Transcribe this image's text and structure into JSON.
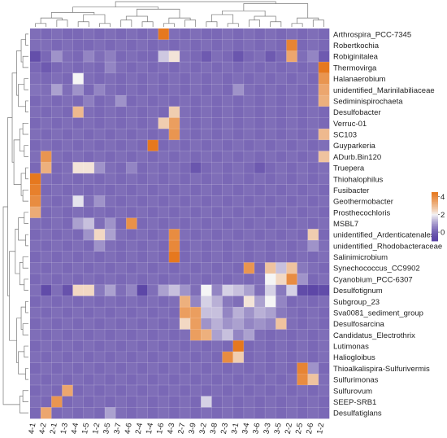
{
  "chart_data": {
    "type": "heatmap",
    "title": "",
    "xlabel": "",
    "ylabel": "",
    "columns": [
      "4-1",
      "4-2",
      "2-1",
      "1-3",
      "4-4",
      "1-5",
      "1-2",
      "3-5",
      "3-7",
      "4-6",
      "2-4",
      "1-4",
      "1-6",
      "4-3",
      "2-7",
      "3-9",
      "3-2",
      "3-8",
      "2-3",
      "3-1",
      "3-4",
      "3-6",
      "3-3",
      "3-5",
      "2-2",
      "2-5",
      "2-6",
      "1-2"
    ],
    "rows": [
      "Arthrospira_PCC-7345",
      "Robertkochia",
      "Robiginitalea",
      "Thermovirga",
      "Halanaerobium",
      "unidentified_Marinilabiliaceae",
      "Sediminispirochaeta",
      "Desulfobacter",
      "Verruc-01",
      "SC103",
      "Guyparkeria",
      "ADurb.Bin120",
      "Truepera",
      "Thiohalophilus",
      "Fusibacter",
      "Geothermobacter",
      "Prosthecochloris",
      "MSBL7",
      "unidentified_Ardenticatenales",
      "unidentified_Rhodobacteraceae",
      "Salinimicrobium",
      "Synechococcus_CC9902",
      "Cyanobium_PCC-6307",
      "Desulfotignum",
      "Subgroup_23",
      "Sva0081_sediment_group",
      "Desulfosarcina",
      "Candidatus_Electrothrix",
      "Lutimonas",
      "Haliogloibus",
      "Thioalkalispira-Sulfurivermis",
      "Sulfurimonas",
      "Sulfurovum",
      "SEEP-SRB1",
      "Desulfatiglans"
    ],
    "values": [
      [
        0.2,
        0.1,
        0.2,
        0.1,
        0.1,
        0.2,
        0.1,
        0.2,
        0.1,
        0.2,
        0.1,
        0.2,
        4.5,
        0.2,
        0.1,
        0.2,
        0.1,
        0.1,
        0.2,
        0.1,
        0.2,
        0.1,
        0.2,
        0.1,
        0.2,
        0.1,
        0.2,
        0.1
      ],
      [
        0.2,
        0.2,
        0.1,
        0.2,
        0.1,
        0.1,
        0.2,
        0.1,
        0.2,
        0.1,
        0.2,
        0.1,
        0.2,
        0.1,
        0.2,
        0.1,
        0.2,
        0.1,
        0.2,
        0.1,
        0.2,
        0.1,
        0.2,
        0.1,
        4.2,
        0.1,
        0.2,
        0.1
      ],
      [
        -0.5,
        0.1,
        0.8,
        0.2,
        0.1,
        0.6,
        0.2,
        0.5,
        0.1,
        0.2,
        0.1,
        0.1,
        1.5,
        2.2,
        0.2,
        0.1,
        -0.2,
        0.2,
        0.1,
        -0.3,
        0.1,
        0.2,
        -0.2,
        0.1,
        3.4,
        0.2,
        0.6,
        -0.2
      ],
      [
        0.1,
        -0.2,
        0.1,
        0.2,
        0.1,
        0.2,
        0.1,
        0.6,
        0.2,
        0.1,
        0.2,
        0.1,
        0.2,
        0.1,
        0.2,
        0.1,
        0.2,
        0.1,
        0.2,
        0.1,
        0.2,
        0.1,
        0.2,
        0.1,
        0.2,
        0.1,
        0.2,
        4.5
      ],
      [
        0.2,
        0.1,
        0.2,
        0.1,
        2.0,
        0.2,
        0.1,
        0.2,
        0.1,
        0.2,
        0.1,
        0.2,
        0.1,
        0.2,
        0.1,
        0.2,
        0.1,
        0.2,
        0.1,
        0.2,
        0.1,
        0.2,
        0.1,
        0.2,
        0.1,
        0.2,
        0.1,
        3.8
      ],
      [
        0.3,
        0.2,
        1.0,
        0.2,
        0.8,
        0.1,
        0.6,
        0.2,
        0.1,
        0.2,
        0.1,
        0.2,
        0.1,
        0.2,
        0.1,
        0.2,
        0.1,
        0.2,
        0.1,
        0.8,
        0.2,
        0.1,
        0.2,
        0.1,
        0.2,
        0.1,
        0.2,
        3.4
      ],
      [
        0.1,
        0.2,
        0.1,
        0.2,
        0.1,
        0.5,
        0.1,
        0.2,
        0.8,
        0.1,
        0.2,
        0.1,
        0.2,
        0.1,
        0.2,
        0.1,
        0.2,
        0.1,
        0.2,
        0.1,
        0.2,
        0.1,
        0.2,
        0.1,
        0.2,
        0.1,
        0.2,
        3.2
      ],
      [
        0.2,
        0.1,
        0.2,
        0.1,
        3.0,
        0.2,
        0.1,
        0.2,
        0.1,
        0.2,
        0.1,
        0.2,
        0.1,
        2.6,
        0.2,
        0.1,
        0.2,
        0.1,
        0.2,
        0.1,
        0.2,
        0.1,
        0.2,
        0.1,
        0.2,
        0.1,
        0.2,
        0.1
      ],
      [
        0.1,
        0.2,
        0.1,
        0.2,
        0.1,
        0.2,
        0.1,
        0.2,
        0.1,
        0.2,
        0.1,
        0.2,
        2.6,
        3.6,
        0.2,
        0.1,
        0.2,
        0.1,
        0.2,
        0.1,
        0.2,
        0.1,
        0.2,
        0.1,
        0.2,
        0.1,
        0.2,
        0.1
      ],
      [
        0.2,
        0.1,
        0.2,
        0.1,
        0.2,
        0.1,
        0.2,
        0.1,
        0.2,
        0.1,
        0.2,
        0.1,
        0.2,
        3.8,
        0.2,
        0.1,
        0.2,
        0.1,
        0.2,
        0.1,
        0.2,
        0.1,
        0.2,
        0.1,
        0.2,
        0.1,
        0.2,
        3.0
      ],
      [
        0.1,
        0.2,
        0.1,
        0.2,
        0.1,
        0.2,
        0.1,
        0.2,
        0.1,
        0.2,
        0.1,
        4.5,
        0.1,
        0.2,
        0.1,
        0.2,
        0.1,
        0.2,
        0.1,
        0.2,
        0.1,
        0.2,
        0.1,
        0.2,
        0.1,
        0.2,
        0.1,
        0.2
      ],
      [
        0.2,
        3.8,
        0.2,
        0.1,
        0.2,
        0.1,
        0.2,
        0.1,
        0.2,
        0.1,
        0.2,
        0.1,
        0.2,
        0.1,
        0.2,
        0.1,
        0.2,
        0.1,
        0.2,
        0.1,
        0.2,
        0.1,
        0.2,
        0.1,
        0.2,
        0.1,
        0.2,
        2.8
      ],
      [
        0.1,
        3.2,
        0.1,
        0.2,
        2.2,
        2.2,
        0.8,
        0.2,
        0.1,
        0.6,
        0.1,
        0.2,
        0.1,
        0.2,
        0.1,
        -0.3,
        0.1,
        0.2,
        0.1,
        0.2,
        0.1,
        -0.2,
        0.1,
        0.2,
        0.1,
        0.2,
        0.1,
        0.2
      ],
      [
        4.5,
        0.2,
        0.1,
        0.2,
        0.1,
        0.2,
        0.1,
        0.2,
        0.1,
        0.2,
        0.1,
        0.2,
        0.1,
        0.2,
        0.1,
        0.2,
        0.1,
        0.2,
        0.1,
        0.2,
        0.1,
        0.2,
        0.1,
        0.2,
        0.1,
        0.2,
        0.1,
        0.2
      ],
      [
        4.3,
        0.1,
        0.2,
        0.1,
        0.2,
        0.1,
        0.2,
        0.1,
        0.2,
        0.1,
        0.2,
        0.1,
        0.2,
        0.1,
        0.2,
        0.1,
        0.2,
        0.1,
        0.2,
        0.1,
        0.2,
        0.1,
        0.2,
        0.1,
        0.2,
        0.1,
        0.2,
        0.1
      ],
      [
        4.0,
        0.2,
        0.1,
        0.2,
        1.8,
        0.2,
        0.8,
        0.2,
        0.1,
        0.2,
        0.1,
        0.2,
        0.1,
        0.2,
        0.1,
        0.2,
        0.1,
        0.2,
        0.1,
        0.2,
        0.1,
        0.2,
        0.1,
        0.2,
        0.1,
        0.2,
        0.1,
        0.2
      ],
      [
        3.3,
        0.1,
        0.2,
        0.1,
        0.2,
        0.1,
        0.2,
        0.1,
        0.2,
        0.1,
        0.2,
        0.1,
        0.2,
        0.1,
        0.2,
        0.1,
        0.2,
        0.1,
        0.2,
        0.1,
        0.2,
        0.1,
        0.2,
        0.1,
        0.2,
        0.1,
        0.2,
        0.1
      ],
      [
        0.2,
        0.1,
        0.2,
        0.1,
        1.0,
        1.4,
        0.2,
        0.8,
        0.1,
        3.9,
        0.1,
        0.2,
        0.1,
        0.2,
        0.1,
        0.2,
        0.1,
        0.2,
        0.1,
        0.2,
        0.1,
        0.2,
        0.1,
        0.2,
        0.1,
        0.2,
        0.1,
        0.2
      ],
      [
        0.1,
        0.2,
        0.1,
        0.2,
        0.1,
        0.8,
        2.4,
        1.0,
        0.2,
        0.1,
        0.2,
        0.1,
        0.2,
        4.0,
        0.2,
        0.1,
        0.2,
        0.1,
        0.2,
        0.1,
        0.2,
        0.1,
        0.2,
        0.1,
        0.2,
        0.1,
        2.6,
        0.1
      ],
      [
        0.2,
        0.1,
        0.2,
        0.1,
        0.2,
        0.1,
        0.8,
        0.2,
        0.1,
        0.2,
        0.1,
        0.2,
        0.1,
        4.1,
        0.1,
        0.2,
        0.1,
        0.2,
        0.1,
        0.2,
        0.1,
        0.2,
        0.1,
        0.2,
        0.1,
        0.2,
        0.8,
        0.2
      ],
      [
        0.1,
        0.2,
        0.1,
        0.2,
        0.1,
        0.2,
        0.1,
        0.2,
        0.1,
        0.2,
        0.1,
        0.2,
        0.1,
        4.5,
        0.1,
        0.2,
        0.1,
        0.2,
        0.1,
        0.2,
        0.1,
        0.2,
        0.1,
        0.2,
        0.1,
        0.2,
        0.1,
        0.2
      ],
      [
        0.2,
        0.1,
        0.2,
        0.1,
        0.2,
        0.1,
        0.2,
        0.1,
        0.2,
        0.1,
        0.2,
        0.1,
        0.2,
        0.1,
        0.2,
        0.1,
        0.2,
        0.1,
        0.2,
        0.1,
        3.8,
        0.1,
        2.8,
        1.4,
        2.8,
        0.4,
        0.2,
        0.1
      ],
      [
        0.1,
        0.2,
        0.1,
        0.2,
        0.1,
        0.2,
        0.1,
        0.2,
        0.1,
        0.2,
        0.1,
        0.2,
        0.1,
        0.2,
        0.1,
        0.2,
        0.1,
        0.2,
        0.1,
        0.2,
        0.1,
        0.2,
        2.0,
        2.4,
        4.0,
        0.8,
        0.1,
        0.2
      ],
      [
        0.2,
        -0.6,
        0.2,
        -0.4,
        2.4,
        2.4,
        0.4,
        1.0,
        0.2,
        0.6,
        -0.8,
        0.2,
        1.0,
        1.4,
        0.8,
        0.2,
        2.0,
        0.6,
        1.6,
        1.4,
        1.0,
        0.2,
        1.6,
        0.4,
        1.6,
        -0.6,
        -0.8,
        -0.6
      ],
      [
        0.1,
        0.2,
        0.1,
        0.2,
        0.1,
        0.2,
        0.1,
        0.2,
        0.1,
        0.2,
        0.1,
        0.2,
        0.1,
        0.2,
        3.2,
        0.6,
        1.6,
        1.2,
        0.4,
        0.2,
        2.2,
        1.0,
        2.0,
        0.6,
        0.1,
        0.2,
        0.1,
        0.2
      ],
      [
        0.2,
        0.1,
        0.2,
        0.1,
        0.2,
        0.1,
        0.2,
        0.1,
        0.2,
        0.1,
        0.2,
        0.1,
        0.2,
        0.1,
        3.6,
        3.6,
        1.4,
        1.4,
        0.6,
        1.2,
        0.8,
        1.2,
        1.0,
        0.4,
        0.2,
        0.1,
        0.2,
        0.1
      ],
      [
        0.1,
        0.2,
        0.1,
        0.2,
        0.1,
        0.2,
        0.1,
        0.2,
        0.1,
        0.2,
        0.1,
        0.2,
        0.1,
        0.2,
        2.4,
        3.6,
        0.8,
        1.2,
        0.8,
        1.0,
        0.6,
        0.8,
        0.6,
        2.8,
        0.2,
        0.1,
        0.2,
        0.1
      ],
      [
        0.2,
        0.1,
        0.2,
        0.1,
        0.2,
        0.1,
        0.2,
        0.1,
        0.2,
        0.1,
        0.2,
        0.1,
        0.2,
        0.1,
        0.2,
        3.6,
        3.2,
        1.0,
        1.4,
        0.6,
        1.0,
        0.2,
        0.1,
        0.2,
        0.1,
        0.2,
        0.1,
        0.2
      ],
      [
        0.1,
        0.2,
        0.1,
        0.2,
        0.1,
        0.2,
        0.1,
        0.2,
        0.1,
        0.2,
        0.1,
        0.2,
        0.1,
        0.2,
        0.1,
        0.2,
        0.1,
        0.2,
        0.1,
        4.5,
        0.1,
        0.2,
        0.1,
        0.2,
        0.1,
        0.2,
        0.1,
        0.2
      ],
      [
        0.2,
        0.1,
        0.2,
        0.1,
        0.2,
        0.1,
        0.2,
        0.1,
        0.2,
        0.1,
        0.2,
        0.1,
        0.2,
        0.1,
        0.2,
        0.1,
        0.2,
        0.1,
        4.0,
        2.6,
        0.1,
        0.2,
        0.1,
        0.2,
        0.1,
        0.2,
        0.1,
        0.2
      ],
      [
        0.1,
        0.2,
        0.1,
        0.2,
        0.1,
        0.2,
        0.1,
        0.2,
        0.1,
        0.2,
        0.1,
        0.2,
        0.1,
        0.2,
        0.1,
        0.2,
        0.1,
        0.2,
        0.1,
        0.2,
        0.1,
        0.2,
        0.1,
        0.2,
        0.1,
        4.2,
        0.8,
        0.1
      ],
      [
        0.2,
        0.1,
        0.2,
        0.1,
        0.2,
        0.1,
        0.2,
        0.1,
        0.2,
        0.1,
        0.2,
        0.1,
        0.2,
        0.1,
        0.2,
        0.1,
        0.2,
        0.1,
        0.2,
        0.1,
        0.2,
        0.1,
        0.2,
        0.1,
        0.2,
        4.0,
        2.8,
        0.2
      ],
      [
        0.1,
        0.2,
        0.1,
        3.4,
        0.1,
        0.2,
        0.1,
        0.2,
        0.1,
        0.2,
        0.1,
        0.2,
        0.1,
        0.2,
        0.1,
        0.2,
        0.1,
        0.2,
        0.1,
        0.2,
        0.1,
        0.2,
        0.1,
        0.2,
        0.1,
        0.2,
        0.1,
        0.2
      ],
      [
        0.2,
        0.1,
        3.8,
        0.1,
        0.2,
        0.1,
        0.2,
        0.1,
        0.2,
        0.1,
        0.2,
        0.1,
        0.2,
        0.1,
        0.2,
        0.1,
        1.6,
        0.1,
        0.2,
        0.1,
        0.2,
        0.1,
        0.2,
        0.1,
        0.2,
        0.1,
        0.2,
        0.1
      ],
      [
        0.1,
        3.4,
        0.1,
        0.2,
        0.1,
        0.2,
        0.1,
        1.0,
        0.2,
        0.1,
        0.2,
        0.1,
        0.2,
        0.1,
        0.2,
        0.1,
        0.2,
        0.1,
        0.2,
        0.1,
        0.2,
        0.1,
        0.2,
        0.1,
        0.2,
        0.1,
        0.2,
        0.1
      ]
    ],
    "legend": {
      "ticks": [
        0,
        2,
        4
      ],
      "range": [
        -1,
        4.5
      ],
      "colors": {
        "low": "#5b45a6",
        "mid": "#f5f5f5",
        "high": "#e6781e"
      },
      "placement": "right"
    },
    "grid": true
  }
}
